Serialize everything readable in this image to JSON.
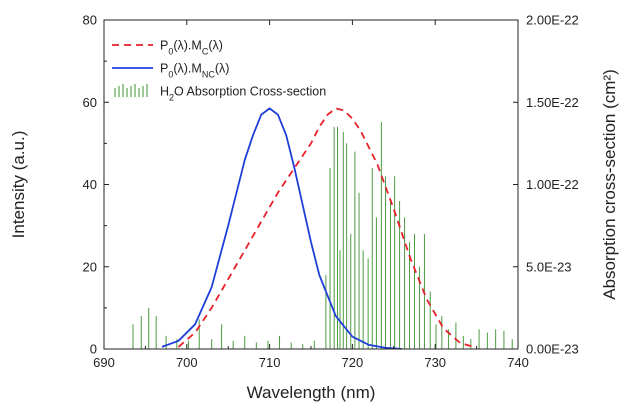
{
  "chart_data": {
    "type": "line",
    "xlabel": "Wavelength (nm)",
    "ylabel": "Intensity (a.u.)",
    "y2label": "Absorption cross-section (cm²)",
    "xlim": [
      690,
      740
    ],
    "ylim": [
      0,
      80
    ],
    "y2lim": [
      0,
      2e-22
    ],
    "x_ticks": [
      "690",
      "700",
      "710",
      "720",
      "730",
      "740"
    ],
    "y_ticks": [
      "0",
      "20",
      "40",
      "60",
      "80"
    ],
    "y2_ticks": [
      "0.00E-23",
      "5.0E-23",
      "1.00E-22",
      "1.50E-22",
      "2.00E-22"
    ],
    "grid": false,
    "legend_position": "top-left",
    "series": [
      {
        "name": "P0(λ).MC(λ)",
        "legend": {
          "base": "P",
          "sub1": "0",
          "mid": "(λ).M",
          "sub2": "C",
          "tail": "(λ)"
        },
        "color": "#e8202a",
        "style": "dashed",
        "axis": "left",
        "x": [
          699,
          701,
          703,
          705,
          707,
          709,
          711,
          713,
          715,
          716,
          717,
          718,
          719,
          720,
          721,
          723,
          725,
          727,
          729,
          731,
          733,
          735
        ],
        "y": [
          0.5,
          4,
          10,
          17,
          24,
          31,
          38,
          44,
          50,
          54,
          57,
          58.5,
          58,
          56,
          53,
          45,
          34,
          22,
          12,
          5,
          1.5,
          0.3
        ]
      },
      {
        "name": "P0(λ).MNC(λ)",
        "legend": {
          "base": "P",
          "sub1": "0",
          "mid": "(λ).M",
          "sub2": "NC",
          "tail": "(λ)"
        },
        "color": "#1f3fd8",
        "style": "solid",
        "axis": "left",
        "x": [
          697,
          699,
          701,
          703,
          705,
          706,
          707,
          708,
          709,
          710,
          711,
          712,
          713,
          714,
          715,
          716,
          718,
          720,
          722,
          724,
          726
        ],
        "y": [
          0.5,
          2,
          6,
          15,
          30,
          38,
          46,
          52,
          57,
          58.5,
          57,
          52,
          44,
          35,
          26,
          18,
          8,
          3,
          1,
          0.3,
          0
        ]
      },
      {
        "name": "H2O Absorption Cross-section",
        "legend": {
          "base": "H",
          "sub1": "2",
          "mid": "O Absorption Cross-section",
          "sub2": "",
          "tail": ""
        },
        "color": "#3a8f2e",
        "style": "spikes",
        "axis": "right",
        "x": [
          693.5,
          694.5,
          695.4,
          696.3,
          697.5,
          698.8,
          700.2,
          701.5,
          703.0,
          704.2,
          705.6,
          707.0,
          708.4,
          709.8,
          711.2,
          712.6,
          714.0,
          715.4,
          716.8,
          717.3,
          717.8,
          718.2,
          718.5,
          718.9,
          719.3,
          719.8,
          720.3,
          720.8,
          721.3,
          721.9,
          722.4,
          722.9,
          723.5,
          724.0,
          724.6,
          725.1,
          725.7,
          726.3,
          726.9,
          727.5,
          728.1,
          728.7,
          729.4,
          730.1,
          730.8,
          731.6,
          732.5,
          733.4,
          734.3,
          735.3,
          736.3,
          737.3,
          738.3,
          739.3
        ],
        "y": [
          1.5e-23,
          2e-23,
          2.5e-23,
          2e-23,
          8e-24,
          6e-24,
          5e-24,
          1.8e-23,
          6e-24,
          1.5e-23,
          5e-24,
          8e-24,
          4e-24,
          5e-24,
          8e-24,
          4e-24,
          3e-24,
          5e-24,
          4.5e-23,
          1.1e-22,
          1.35e-22,
          1.35e-22,
          6e-23,
          1.32e-22,
          1.25e-22,
          7e-23,
          1.2e-22,
          9.5e-23,
          6e-23,
          5.5e-23,
          1.1e-22,
          8e-23,
          1.38e-22,
          1.05e-22,
          9e-23,
          1.05e-22,
          9e-23,
          8e-23,
          6.5e-23,
          7e-23,
          5e-23,
          7e-23,
          3.5e-23,
          1.5e-23,
          2e-23,
          1.2e-23,
          1.6e-23,
          8e-24,
          6e-24,
          1.2e-23,
          1e-23,
          1.2e-23,
          1.1e-23,
          6e-24
        ]
      }
    ]
  }
}
